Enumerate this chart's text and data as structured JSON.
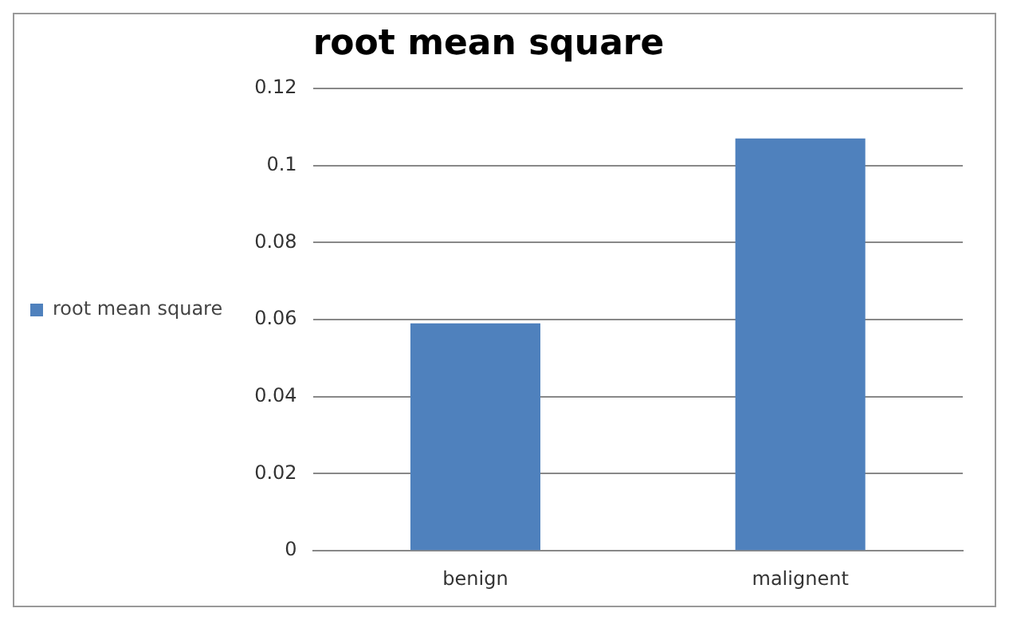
{
  "chart_data": {
    "type": "bar",
    "title": "root mean square",
    "categories": [
      "benign",
      "malignent"
    ],
    "series": [
      {
        "name": "root mean square",
        "color": "#4f81bd",
        "values": [
          0.059,
          0.107
        ]
      }
    ],
    "ylim": [
      0,
      0.12
    ],
    "yticks": [
      0,
      0.02,
      0.04,
      0.06,
      0.08,
      0.1,
      0.12
    ],
    "grid": "y",
    "legend": "left"
  }
}
